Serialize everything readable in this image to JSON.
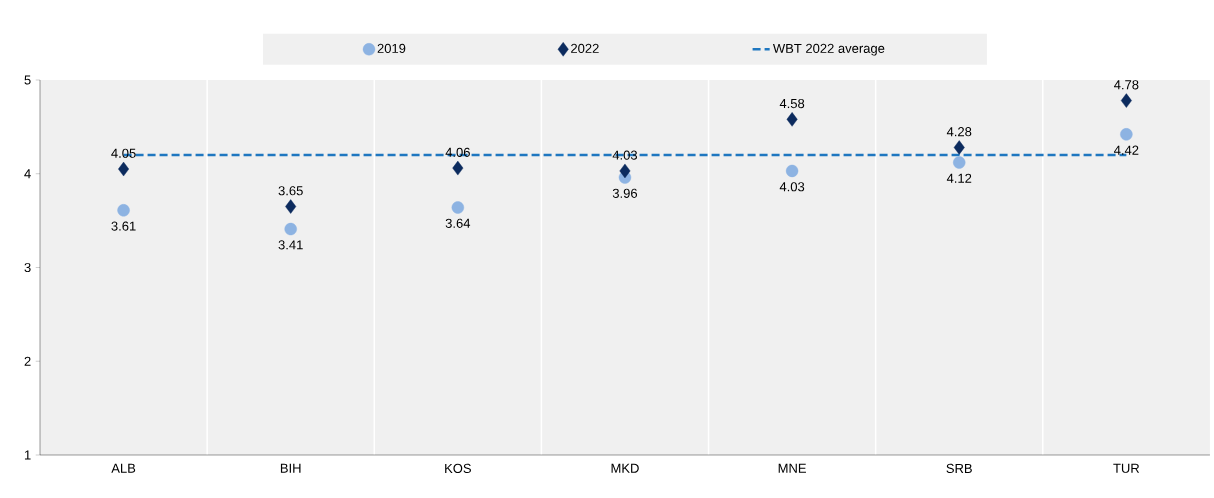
{
  "chart_data": {
    "type": "scatter",
    "categories": [
      "ALB",
      "BIH",
      "KOS",
      "MKD",
      "MNE",
      "SRB",
      "TUR"
    ],
    "series": [
      {
        "name": "2019",
        "color": "#8db3e2",
        "marker": "circle",
        "values": [
          3.61,
          3.41,
          3.64,
          3.96,
          4.03,
          4.12,
          4.42
        ],
        "value_labels": [
          "3.61",
          "3.41",
          "3.64",
          "3.96",
          "4.03",
          "4.12",
          "4.42"
        ]
      },
      {
        "name": "2022",
        "color": "#0c2b5e",
        "marker": "diamond",
        "values": [
          4.05,
          3.65,
          4.06,
          4.03,
          4.58,
          4.28,
          4.78
        ],
        "value_labels": [
          "4.05",
          "3.65",
          "4.06",
          "4.03",
          "4.58",
          "4.28",
          "4.78"
        ]
      },
      {
        "name": "WBT 2022 average",
        "type": "line",
        "color": "#1f77c0",
        "line_style": "dashed",
        "marker": "none",
        "values": [
          4.2,
          4.2,
          4.2,
          4.2,
          4.2,
          4.2,
          4.2
        ]
      }
    ],
    "ylim": [
      1,
      5
    ],
    "yticks": [
      1,
      2,
      3,
      4,
      5
    ],
    "grid": "x",
    "legend": "top"
  }
}
